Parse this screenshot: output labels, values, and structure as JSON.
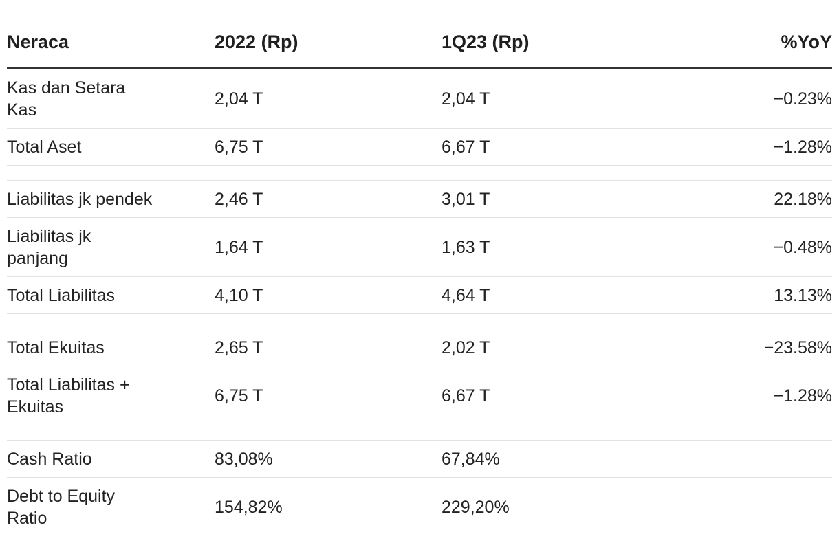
{
  "table": {
    "headers": [
      "Neraca",
      "2022 (Rp)",
      "1Q23 (Rp)",
      "%YoY"
    ],
    "rows": [
      {
        "label": "Kas dan Setara Kas",
        "v2022": "2,04 T",
        "v1q23": "2,04 T",
        "yoy": "−0.23%"
      },
      {
        "label": "Total Aset",
        "v2022": "6,75 T",
        "v1q23": "6,67 T",
        "yoy": "−1.28%"
      },
      {
        "label": "Liabilitas jk pendek",
        "v2022": "2,46 T",
        "v1q23": "3,01 T",
        "yoy": "22.18%"
      },
      {
        "label": "Liabilitas jk panjang",
        "v2022": "1,64 T",
        "v1q23": "1,63 T",
        "yoy": "−0.48%"
      },
      {
        "label": "Total Liabilitas",
        "v2022": "4,10 T",
        "v1q23": "4,64 T",
        "yoy": "13.13%"
      },
      {
        "label": "Total Ekuitas",
        "v2022": "2,65 T",
        "v1q23": "2,02 T",
        "yoy": "−23.58%"
      },
      {
        "label": "Total Liabilitas + Ekuitas",
        "v2022": "6,75 T",
        "v1q23": "6,67 T",
        "yoy": "−1.28%"
      },
      {
        "label": "Cash Ratio",
        "v2022": "83,08%",
        "v1q23": "67,84%",
        "yoy": ""
      },
      {
        "label": "Debt to Equity Ratio",
        "v2022": "154,82%",
        "v1q23": "229,20%",
        "yoy": ""
      }
    ]
  }
}
